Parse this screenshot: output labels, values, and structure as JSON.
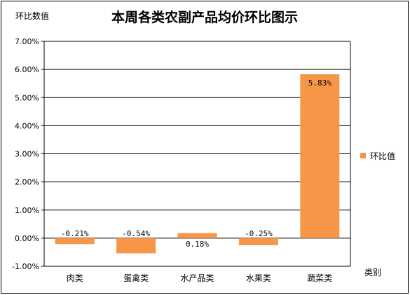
{
  "chart_data": {
    "type": "bar",
    "title": "本周各类农副产品均价环比图示",
    "ylabel": "环比数值",
    "xlabel": "类别",
    "categories": [
      "肉类",
      "蛋禽类",
      "水产品类",
      "水果类",
      "蔬菜类"
    ],
    "series": [
      {
        "name": "环比值",
        "values": [
          -0.21,
          -0.54,
          0.18,
          -0.25,
          5.83
        ],
        "color": "#F79646"
      }
    ],
    "data_labels": [
      "-0.21%",
      "-0.54%",
      "0.18%",
      "-0.25%",
      "5.83%"
    ],
    "ylim": [
      -1,
      7
    ],
    "yticks": [
      "-1.00%",
      "0.00%",
      "1.00%",
      "2.00%",
      "3.00%",
      "4.00%",
      "5.00%",
      "6.00%",
      "7.00%"
    ],
    "grid": true,
    "legend_position": "right"
  }
}
